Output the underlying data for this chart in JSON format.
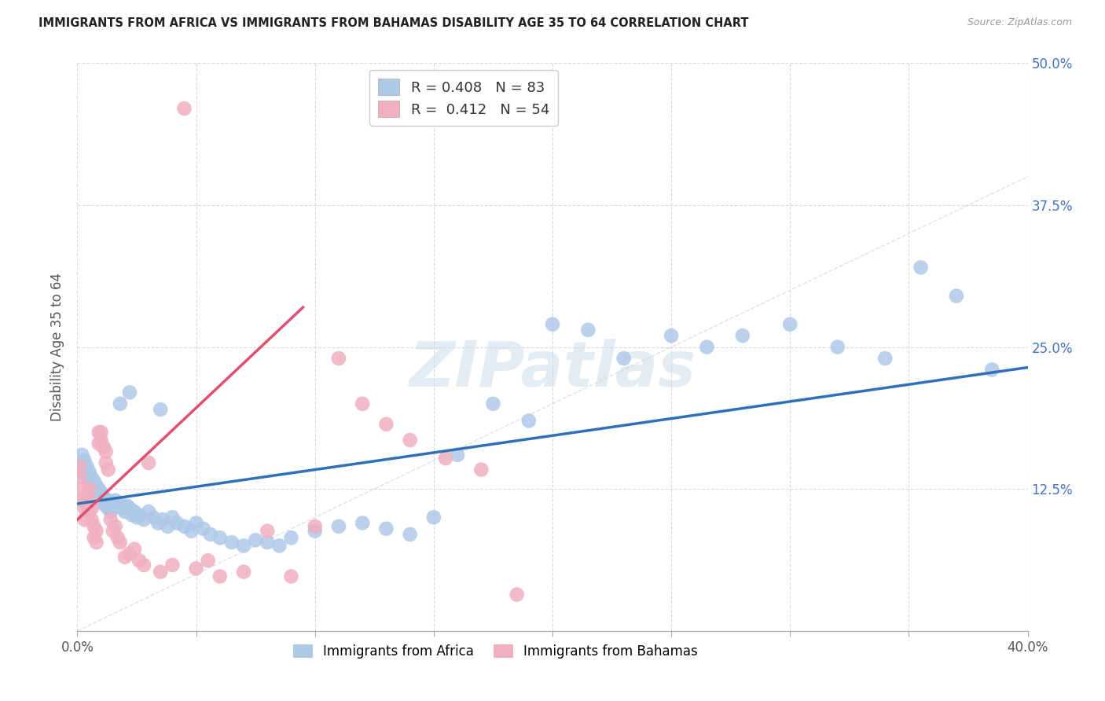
{
  "title": "IMMIGRANTS FROM AFRICA VS IMMIGRANTS FROM BAHAMAS DISABILITY AGE 35 TO 64 CORRELATION CHART",
  "source": "Source: ZipAtlas.com",
  "ylabel": "Disability Age 35 to 64",
  "xlim": [
    0.0,
    0.4
  ],
  "ylim": [
    0.0,
    0.5
  ],
  "xticks": [
    0.0,
    0.05,
    0.1,
    0.15,
    0.2,
    0.25,
    0.3,
    0.35,
    0.4
  ],
  "yticks": [
    0.0,
    0.125,
    0.25,
    0.375,
    0.5
  ],
  "africa_color": "#aec8e8",
  "bahamas_color": "#f0b0c0",
  "africa_line_color": "#3070b8",
  "bahamas_line_color": "#e05070",
  "diagonal_color": "#cccccc",
  "legend_africa_R": "0.408",
  "legend_africa_N": "83",
  "legend_bahamas_R": "0.412",
  "legend_bahamas_N": "54",
  "watermark": "ZIPatlas",
  "background_color": "#ffffff",
  "grid_color": "#d8d8e8",
  "africa_x": [
    0.001,
    0.002,
    0.002,
    0.003,
    0.003,
    0.004,
    0.004,
    0.005,
    0.005,
    0.006,
    0.006,
    0.007,
    0.007,
    0.008,
    0.008,
    0.009,
    0.009,
    0.01,
    0.01,
    0.011,
    0.011,
    0.012,
    0.012,
    0.013,
    0.013,
    0.014,
    0.015,
    0.015,
    0.016,
    0.017,
    0.018,
    0.019,
    0.02,
    0.021,
    0.022,
    0.023,
    0.024,
    0.025,
    0.026,
    0.028,
    0.03,
    0.032,
    0.034,
    0.036,
    0.038,
    0.04,
    0.042,
    0.045,
    0.048,
    0.05,
    0.053,
    0.056,
    0.06,
    0.065,
    0.07,
    0.075,
    0.08,
    0.085,
    0.09,
    0.1,
    0.11,
    0.12,
    0.13,
    0.14,
    0.15,
    0.16,
    0.175,
    0.19,
    0.2,
    0.215,
    0.23,
    0.25,
    0.265,
    0.28,
    0.3,
    0.32,
    0.34,
    0.355,
    0.37,
    0.385,
    0.018,
    0.022,
    0.035
  ],
  "africa_y": [
    0.14,
    0.155,
    0.148,
    0.142,
    0.15,
    0.138,
    0.145,
    0.132,
    0.14,
    0.128,
    0.135,
    0.125,
    0.132,
    0.12,
    0.128,
    0.118,
    0.125,
    0.115,
    0.122,
    0.112,
    0.118,
    0.11,
    0.116,
    0.108,
    0.114,
    0.105,
    0.112,
    0.108,
    0.115,
    0.11,
    0.112,
    0.108,
    0.105,
    0.11,
    0.108,
    0.102,
    0.105,
    0.1,
    0.102,
    0.098,
    0.105,
    0.1,
    0.095,
    0.098,
    0.092,
    0.1,
    0.095,
    0.092,
    0.088,
    0.095,
    0.09,
    0.085,
    0.082,
    0.078,
    0.075,
    0.08,
    0.078,
    0.075,
    0.082,
    0.088,
    0.092,
    0.095,
    0.09,
    0.085,
    0.1,
    0.155,
    0.2,
    0.185,
    0.27,
    0.265,
    0.24,
    0.26,
    0.25,
    0.26,
    0.27,
    0.25,
    0.24,
    0.32,
    0.295,
    0.23,
    0.2,
    0.21,
    0.195
  ],
  "bahamas_x": [
    0.001,
    0.001,
    0.002,
    0.002,
    0.003,
    0.003,
    0.003,
    0.004,
    0.004,
    0.005,
    0.005,
    0.005,
    0.006,
    0.006,
    0.007,
    0.007,
    0.008,
    0.008,
    0.009,
    0.009,
    0.01,
    0.01,
    0.011,
    0.012,
    0.012,
    0.013,
    0.014,
    0.015,
    0.016,
    0.017,
    0.018,
    0.02,
    0.022,
    0.024,
    0.026,
    0.028,
    0.03,
    0.035,
    0.04,
    0.045,
    0.05,
    0.055,
    0.06,
    0.07,
    0.08,
    0.09,
    0.1,
    0.11,
    0.12,
    0.13,
    0.14,
    0.155,
    0.17,
    0.185
  ],
  "bahamas_y": [
    0.135,
    0.145,
    0.125,
    0.115,
    0.118,
    0.108,
    0.098,
    0.112,
    0.102,
    0.125,
    0.115,
    0.105,
    0.108,
    0.098,
    0.092,
    0.082,
    0.088,
    0.078,
    0.175,
    0.165,
    0.175,
    0.168,
    0.162,
    0.158,
    0.148,
    0.142,
    0.098,
    0.088,
    0.092,
    0.082,
    0.078,
    0.065,
    0.068,
    0.072,
    0.062,
    0.058,
    0.148,
    0.052,
    0.058,
    0.46,
    0.055,
    0.062,
    0.048,
    0.052,
    0.088,
    0.048,
    0.092,
    0.24,
    0.2,
    0.182,
    0.168,
    0.152,
    0.142,
    0.032
  ],
  "africa_trend_x": [
    0.0,
    0.4
  ],
  "africa_trend_y": [
    0.112,
    0.232
  ],
  "bahamas_trend_x": [
    0.0,
    0.095
  ],
  "bahamas_trend_y": [
    0.098,
    0.285
  ]
}
